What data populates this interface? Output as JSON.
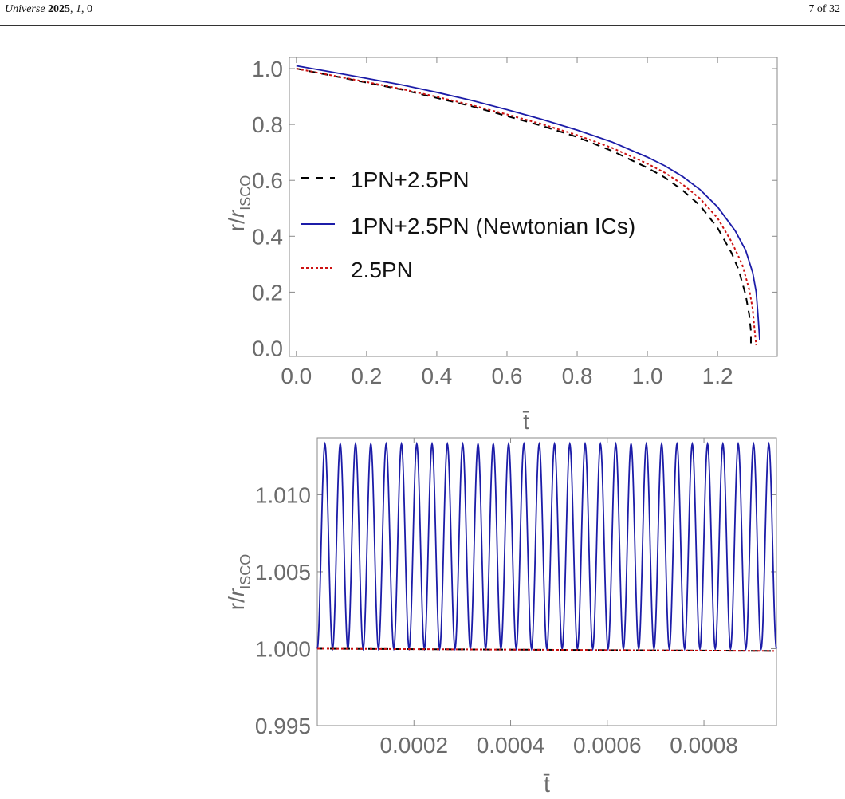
{
  "header": {
    "journal": "Universe",
    "year": "2025",
    "volume": "1",
    "article": "0",
    "page": "7 of 32"
  },
  "colors": {
    "axis": "#6b6b6b",
    "frame": "#8a8a8a",
    "series_1pn_2_5pn": "#000000",
    "series_newtonian_ics": "#1c1ca8",
    "series_2_5pn": "#cc1111"
  },
  "chart_data": [
    {
      "type": "line",
      "xlabel": "t̄",
      "ylabel": "r/r_ISCO",
      "xlim": [
        -0.02,
        1.37
      ],
      "ylim": [
        -0.03,
        1.04
      ],
      "x_ticks": [
        "0.0",
        "0.2",
        "0.4",
        "0.6",
        "0.8",
        "1.0",
        "1.2"
      ],
      "x_tick_values": [
        0.0,
        0.2,
        0.4,
        0.6,
        0.8,
        1.0,
        1.2
      ],
      "y_ticks": [
        "0.0",
        "0.2",
        "0.4",
        "0.6",
        "0.8",
        "1.0"
      ],
      "y_tick_values": [
        0.0,
        0.2,
        0.4,
        0.6,
        0.8,
        1.0
      ],
      "legend_position": "center-left",
      "series": [
        {
          "name": "1PN+2.5PN",
          "style": "dashed",
          "x": [
            0.0,
            0.1,
            0.2,
            0.3,
            0.4,
            0.5,
            0.6,
            0.7,
            0.8,
            0.9,
            1.0,
            1.05,
            1.1,
            1.15,
            1.2,
            1.24,
            1.26,
            1.28,
            1.29,
            1.295,
            1.295
          ],
          "y": [
            1.0,
            0.975,
            0.95,
            0.925,
            0.895,
            0.865,
            0.83,
            0.795,
            0.755,
            0.705,
            0.645,
            0.61,
            0.565,
            0.51,
            0.43,
            0.34,
            0.28,
            0.19,
            0.12,
            0.06,
            0.01
          ]
        },
        {
          "name": "1PN+2.5PN (Newtonian ICs)",
          "style": "solid",
          "x": [
            0.0,
            0.1,
            0.2,
            0.3,
            0.4,
            0.5,
            0.6,
            0.7,
            0.8,
            0.9,
            1.0,
            1.05,
            1.1,
            1.15,
            1.2,
            1.25,
            1.28,
            1.3,
            1.31,
            1.315,
            1.32
          ],
          "y": [
            1.01,
            0.988,
            0.965,
            0.942,
            0.915,
            0.886,
            0.853,
            0.818,
            0.78,
            0.737,
            0.683,
            0.652,
            0.614,
            0.567,
            0.505,
            0.42,
            0.35,
            0.27,
            0.2,
            0.12,
            0.03
          ]
        },
        {
          "name": "2.5PN",
          "style": "dotted",
          "x": [
            0.0,
            0.1,
            0.2,
            0.3,
            0.4,
            0.5,
            0.6,
            0.7,
            0.8,
            0.9,
            1.0,
            1.05,
            1.1,
            1.15,
            1.2,
            1.24,
            1.27,
            1.29,
            1.3,
            1.305,
            1.31
          ],
          "y": [
            1.0,
            0.976,
            0.952,
            0.927,
            0.899,
            0.869,
            0.836,
            0.801,
            0.762,
            0.716,
            0.66,
            0.627,
            0.586,
            0.535,
            0.465,
            0.38,
            0.3,
            0.21,
            0.14,
            0.07,
            0.01
          ]
        }
      ]
    },
    {
      "type": "line",
      "xlabel": "t̄",
      "ylabel": "r/r_ISCO",
      "xlim": [
        0.0,
        0.00095
      ],
      "ylim": [
        0.995,
        1.0137
      ],
      "x_ticks": [
        "0.0002",
        "0.0004",
        "0.0006",
        "0.0008"
      ],
      "x_tick_values": [
        0.0002,
        0.0004,
        0.0006,
        0.0008
      ],
      "y_ticks": [
        "0.995",
        "1.000",
        "1.005",
        "1.010"
      ],
      "y_tick_values": [
        0.995,
        1.0,
        1.005,
        1.01
      ],
      "series": [
        {
          "name": "1PN+2.5PN (Newtonian ICs)",
          "style": "solid",
          "oscillation": {
            "min": 1.0,
            "max": 1.0133,
            "cycles": 30
          }
        },
        {
          "name": "1PN+2.5PN",
          "style": "dashed",
          "x": [
            0.0,
            0.00095
          ],
          "y": [
            1.0,
            0.99985
          ]
        },
        {
          "name": "2.5PN",
          "style": "dotted",
          "x": [
            0.0,
            0.00095
          ],
          "y": [
            1.0,
            0.99985
          ]
        }
      ]
    }
  ]
}
